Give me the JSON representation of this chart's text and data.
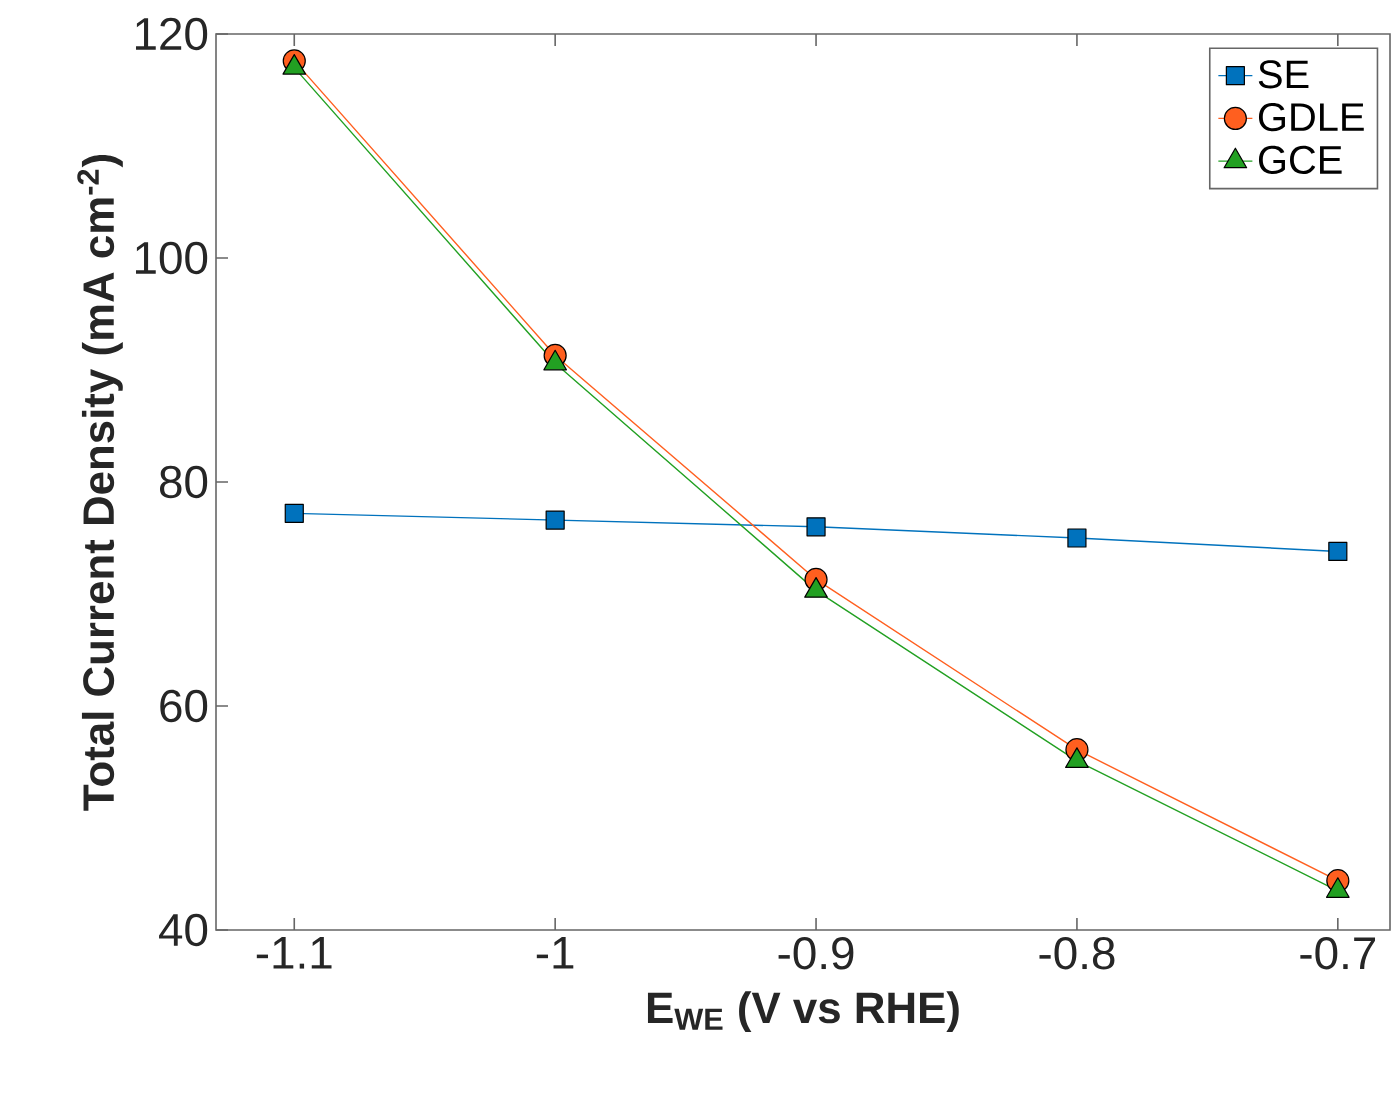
{
  "chart_data": {
    "type": "line",
    "xlabel": "E$_{WE}$ (V vs RHE)",
    "ylabel": "Total Current Density (mA cm$^{-2}$)",
    "x": [
      -1.1,
      -1.0,
      -0.9,
      -0.8,
      -0.7
    ],
    "series": [
      {
        "name": "SE",
        "color": "#0072BD",
        "marker": "square",
        "values": [
          77.2,
          76.6,
          76.0,
          75.0,
          73.8
        ]
      },
      {
        "name": "GDLE",
        "color": "#FF5F1F",
        "marker": "circle",
        "values": [
          117.6,
          91.3,
          71.3,
          56.1,
          44.4
        ]
      },
      {
        "name": "GCE",
        "color": "#22A022",
        "marker": "triangle",
        "values": [
          117.0,
          90.6,
          70.3,
          55.1,
          43.5
        ]
      }
    ],
    "xlim": [
      -1.13,
      -0.68
    ],
    "ylim": [
      40,
      120
    ],
    "xticks": [
      -1.1,
      -1,
      -0.9,
      -0.8,
      -0.7
    ],
    "yticks": [
      40,
      60,
      80,
      100,
      120
    ],
    "grid": false,
    "legend": "top right",
    "line_style": "solid"
  }
}
